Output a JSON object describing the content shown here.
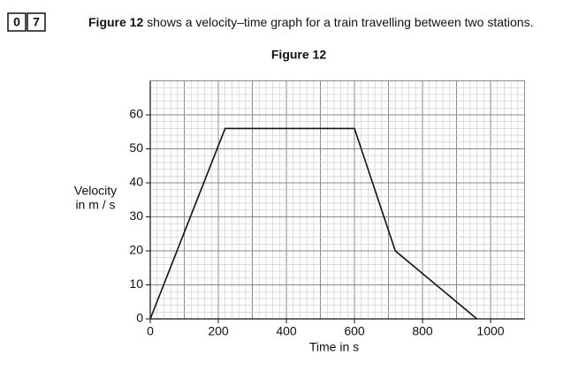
{
  "question_number": [
    "0",
    "7"
  ],
  "intro_bold": "Figure 12",
  "intro": "shows a velocity–time graph for a train travelling between two stations.",
  "chart_data": {
    "type": "line",
    "title": "Figure 12",
    "x": [
      0,
      220,
      600,
      720,
      960
    ],
    "values": [
      0,
      56,
      56,
      20,
      0
    ],
    "color": "#111111",
    "xlabel": "Time in s",
    "ylabel": [
      "Velocity",
      "in m / s"
    ],
    "xlim": [
      0,
      1100
    ],
    "ylim": [
      0,
      70
    ],
    "xticks": [
      0,
      200,
      400,
      600,
      800,
      1000
    ],
    "yticks": [
      0,
      10,
      20,
      30,
      40,
      50,
      60
    ],
    "grid": true,
    "grid_subdivisions": [
      10,
      5
    ]
  }
}
